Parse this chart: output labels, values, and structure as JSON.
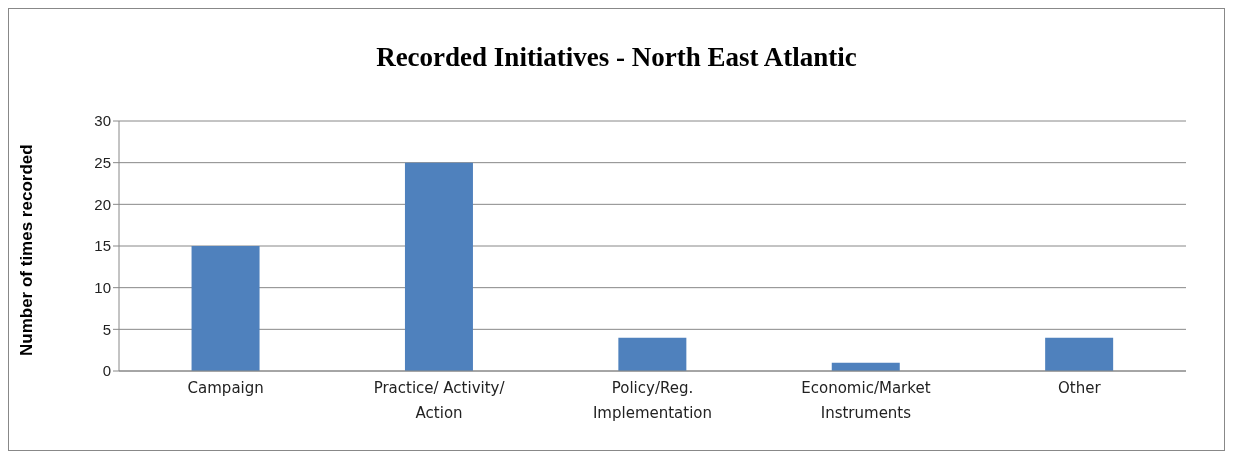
{
  "chart_data": {
    "type": "bar",
    "title": "Recorded Initiatives - North East Atlantic",
    "ylabel": "Number of times recorded",
    "categories": [
      "Campaign",
      "Practice/ Activity/ Action",
      "Policy/Reg. Implementation",
      "Economic/Market Instruments",
      "Other"
    ],
    "values": [
      15,
      25,
      4,
      1,
      4
    ],
    "color": "#4f81bd",
    "ylim": [
      0,
      30
    ],
    "yticks": [
      0,
      5,
      10,
      15,
      20,
      25,
      30
    ],
    "grid": "y",
    "legend": false
  }
}
